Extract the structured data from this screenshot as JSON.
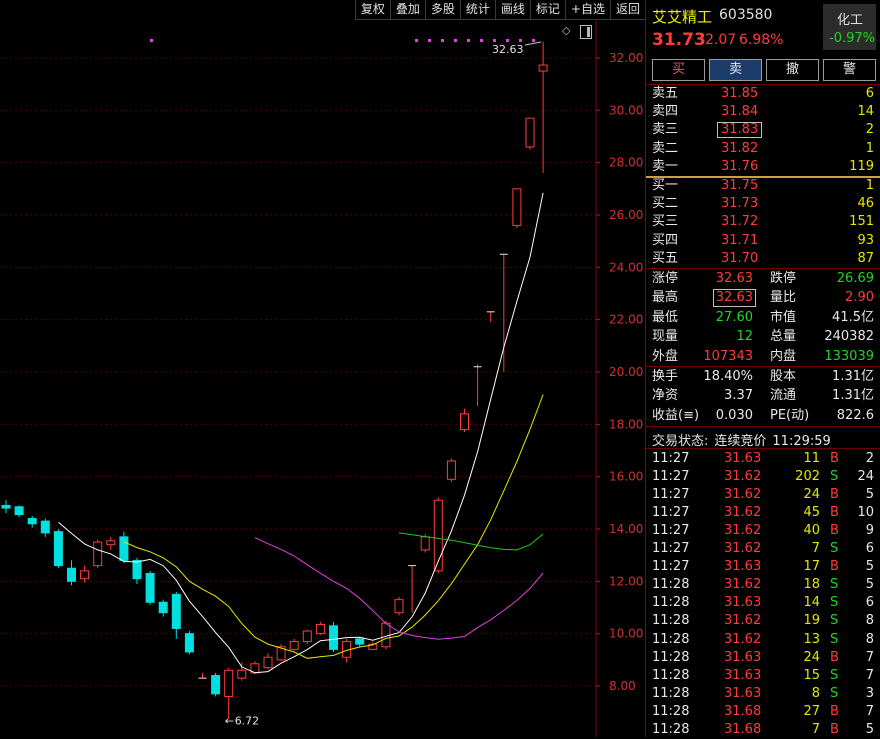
{
  "toolbar": {
    "buttons": [
      "复权",
      "叠加",
      "多股",
      "统计",
      "画线",
      "标记",
      "+自选",
      "返回"
    ]
  },
  "chart_data": {
    "type": "candlestick",
    "y_ticks": [
      "32.00",
      "30.00",
      "28.00",
      "26.00",
      "24.00",
      "22.00",
      "20.00",
      "18.00",
      "16.00",
      "14.00",
      "12.00",
      "10.00",
      "8.00"
    ],
    "ylim": [
      7.0,
      33.2
    ],
    "annotations": {
      "high_label": "32.63",
      "low_label": "6.72"
    },
    "candles": [
      {
        "o": 14.9,
        "c": 14.8,
        "h": 15.1,
        "l": 14.6
      },
      {
        "o": 14.85,
        "c": 14.55,
        "h": 14.9,
        "l": 14.45
      },
      {
        "o": 14.4,
        "c": 14.2,
        "h": 14.5,
        "l": 14.05
      },
      {
        "o": 14.3,
        "c": 13.85,
        "h": 14.4,
        "l": 13.7
      },
      {
        "o": 13.9,
        "c": 12.6,
        "h": 14.0,
        "l": 12.5
      },
      {
        "o": 12.5,
        "c": 12.0,
        "h": 12.8,
        "l": 11.85
      },
      {
        "o": 12.1,
        "c": 12.4,
        "h": 12.6,
        "l": 11.95
      },
      {
        "o": 12.6,
        "c": 13.5,
        "h": 13.6,
        "l": 12.5
      },
      {
        "o": 13.4,
        "c": 13.55,
        "h": 13.7,
        "l": 13.2
      },
      {
        "o": 13.7,
        "c": 12.8,
        "h": 13.9,
        "l": 12.7
      },
      {
        "o": 12.8,
        "c": 12.1,
        "h": 12.9,
        "l": 11.9
      },
      {
        "o": 12.3,
        "c": 11.2,
        "h": 12.4,
        "l": 11.1
      },
      {
        "o": 11.2,
        "c": 10.8,
        "h": 11.3,
        "l": 10.65
      },
      {
        "o": 11.5,
        "c": 10.2,
        "h": 11.6,
        "l": 9.8
      },
      {
        "o": 10.0,
        "c": 9.3,
        "h": 10.1,
        "l": 9.2
      },
      {
        "o": 8.3,
        "c": 8.3,
        "h": 8.5,
        "l": 8.3
      },
      {
        "o": 8.4,
        "c": 7.7,
        "h": 8.5,
        "l": 7.6
      },
      {
        "o": 7.6,
        "c": 8.6,
        "h": 8.7,
        "l": 6.72
      },
      {
        "o": 8.3,
        "c": 8.6,
        "h": 8.9,
        "l": 8.2
      },
      {
        "o": 8.5,
        "c": 8.85,
        "h": 8.95,
        "l": 8.45
      },
      {
        "o": 8.7,
        "c": 9.1,
        "h": 9.25,
        "l": 8.65
      },
      {
        "o": 9.0,
        "c": 9.5,
        "h": 9.6,
        "l": 8.95
      },
      {
        "o": 9.4,
        "c": 9.7,
        "h": 9.8,
        "l": 9.35
      },
      {
        "o": 9.7,
        "c": 10.1,
        "h": 10.15,
        "l": 9.6
      },
      {
        "o": 10.0,
        "c": 10.35,
        "h": 10.45,
        "l": 9.95
      },
      {
        "o": 10.3,
        "c": 9.4,
        "h": 10.45,
        "l": 9.3
      },
      {
        "o": 9.1,
        "c": 9.7,
        "h": 9.8,
        "l": 8.9
      },
      {
        "o": 9.8,
        "c": 9.6,
        "h": 9.85,
        "l": 9.5
      },
      {
        "o": 9.4,
        "c": 9.6,
        "h": 9.7,
        "l": 9.4
      },
      {
        "o": 9.5,
        "c": 10.4,
        "h": 10.5,
        "l": 9.4
      },
      {
        "o": 10.8,
        "c": 11.3,
        "h": 11.4,
        "l": 10.7
      },
      {
        "o": 12.6,
        "c": 12.6,
        "h": 12.6,
        "l": 10.8
      },
      {
        "o": 13.2,
        "c": 13.7,
        "h": 13.8,
        "l": 13.1
      },
      {
        "o": 12.4,
        "c": 15.1,
        "h": 15.2,
        "l": 12.3
      },
      {
        "o": 15.9,
        "c": 16.6,
        "h": 16.7,
        "l": 15.8
      },
      {
        "o": 17.8,
        "c": 18.4,
        "h": 18.6,
        "l": 17.7
      },
      {
        "o": 20.2,
        "c": 20.2,
        "h": 20.3,
        "l": 18.7
      },
      {
        "o": 22.3,
        "c": 22.3,
        "h": 22.3,
        "l": 21.9
      },
      {
        "o": 24.5,
        "c": 24.5,
        "h": 24.5,
        "l": 20.0
      },
      {
        "o": 25.6,
        "c": 27.0,
        "h": 27.0,
        "l": 25.5
      },
      {
        "o": 28.6,
        "c": 29.7,
        "h": 29.7,
        "l": 28.5
      },
      {
        "o": 31.5,
        "c": 31.73,
        "h": 32.63,
        "l": 27.6
      }
    ],
    "ma_series": [
      {
        "color": "#ffffff",
        "values": [
          null,
          null,
          null,
          null,
          14.26,
          13.83,
          13.43,
          13.2,
          13.05,
          12.76,
          12.74,
          12.84,
          12.6,
          12.04,
          11.24,
          10.66,
          10.04,
          9.48,
          8.73,
          8.51,
          8.55,
          8.87,
          9.12,
          9.39,
          9.73,
          9.78,
          9.85,
          9.86,
          9.75,
          9.9,
          10.04,
          10.64,
          11.55,
          12.77,
          13.92,
          15.29,
          16.95,
          18.96,
          20.94,
          22.7,
          24.39,
          26.85
        ]
      },
      {
        "color": "#e6e600",
        "values": [
          null,
          null,
          null,
          null,
          null,
          null,
          null,
          null,
          null,
          13.51,
          13.29,
          13.13,
          12.9,
          12.55,
          12.0,
          11.7,
          11.43,
          11.04,
          10.39,
          9.87,
          9.6,
          9.45,
          9.3,
          9.06,
          9.12,
          9.17,
          9.36,
          9.49,
          9.57,
          9.82,
          9.91,
          10.25,
          10.71,
          11.26,
          11.91,
          12.66,
          13.4,
          14.35,
          15.46,
          16.58,
          17.81,
          19.14
        ]
      },
      {
        "color": "#e040e0",
        "values": [
          null,
          null,
          null,
          null,
          null,
          null,
          null,
          null,
          null,
          null,
          null,
          null,
          null,
          null,
          null,
          null,
          null,
          null,
          null,
          13.67,
          13.44,
          13.22,
          12.97,
          12.63,
          12.31,
          12.0,
          11.73,
          11.35,
          10.88,
          10.39,
          10.07,
          9.93,
          9.85,
          9.79,
          9.83,
          9.89,
          10.23,
          10.53,
          10.89,
          11.27,
          11.73,
          12.32
        ]
      },
      {
        "color": "#21c821",
        "values": [
          null,
          null,
          null,
          null,
          null,
          null,
          null,
          null,
          null,
          null,
          null,
          null,
          null,
          null,
          null,
          null,
          null,
          null,
          null,
          null,
          null,
          null,
          null,
          null,
          null,
          null,
          null,
          null,
          null,
          null,
          13.85,
          13.78,
          13.71,
          13.64,
          13.57,
          13.48,
          13.38,
          13.28,
          13.22,
          13.2,
          13.4,
          13.81
        ]
      }
    ]
  },
  "quote": {
    "name": "艾艾精工",
    "code": "603580",
    "sector": "化工",
    "sector_change": "-0.97%",
    "price": "31.73",
    "change": "2.07",
    "change_pct": "6.98%"
  },
  "actions": [
    "买",
    "卖",
    "撤",
    "警"
  ],
  "asks": [
    {
      "label": "卖五",
      "price": "31.85",
      "vol": "6"
    },
    {
      "label": "卖四",
      "price": "31.84",
      "vol": "14"
    },
    {
      "label": "卖三",
      "price": "31.83",
      "vol": "2"
    },
    {
      "label": "卖二",
      "price": "31.82",
      "vol": "1"
    },
    {
      "label": "卖一",
      "price": "31.76",
      "vol": "119"
    }
  ],
  "bids": [
    {
      "label": "买一",
      "price": "31.75",
      "vol": "1"
    },
    {
      "label": "买二",
      "price": "31.73",
      "vol": "46"
    },
    {
      "label": "买三",
      "price": "31.72",
      "vol": "151"
    },
    {
      "label": "买四",
      "price": "31.71",
      "vol": "93"
    },
    {
      "label": "买五",
      "price": "31.70",
      "vol": "87"
    }
  ],
  "stats1": [
    {
      "l1": "涨停",
      "v1": "32.63",
      "l2": "跌停",
      "v2": "26.69"
    },
    {
      "l1": "最高",
      "v1": "32.63",
      "l2": "量比",
      "v2": "2.90"
    },
    {
      "l1": "最低",
      "v1": "27.60",
      "l2": "市值",
      "v2": "41.5亿"
    },
    {
      "l1": "现量",
      "v1": "12",
      "l2": "总量",
      "v2": "240382"
    },
    {
      "l1": "外盘",
      "v1": "107343",
      "l2": "内盘",
      "v2": "133039"
    }
  ],
  "stats2": [
    {
      "l1": "换手",
      "v1": "18.40%",
      "l2": "股本",
      "v2": "1.31亿"
    },
    {
      "l1": "净资",
      "v1": "3.37",
      "l2": "流通",
      "v2": "1.31亿"
    },
    {
      "l1": "收益(≡)",
      "v1": "0.030",
      "l2": "PE(动)",
      "v2": "822.6"
    }
  ],
  "trade_status": {
    "label": "交易状态:",
    "state": "连续竞价",
    "time": "11:29:59"
  },
  "ticks": [
    {
      "t": "11:27",
      "p": "31.63",
      "v": "11",
      "s": "B",
      "n": "2"
    },
    {
      "t": "11:27",
      "p": "31.62",
      "v": "202",
      "s": "S",
      "n": "24"
    },
    {
      "t": "11:27",
      "p": "31.62",
      "v": "24",
      "s": "B",
      "n": "5"
    },
    {
      "t": "11:27",
      "p": "31.62",
      "v": "45",
      "s": "B",
      "n": "10"
    },
    {
      "t": "11:27",
      "p": "31.62",
      "v": "40",
      "s": "B",
      "n": "9"
    },
    {
      "t": "11:27",
      "p": "31.62",
      "v": "7",
      "s": "S",
      "n": "6"
    },
    {
      "t": "11:27",
      "p": "31.63",
      "v": "17",
      "s": "B",
      "n": "5"
    },
    {
      "t": "11:28",
      "p": "31.62",
      "v": "18",
      "s": "S",
      "n": "5"
    },
    {
      "t": "11:28",
      "p": "31.63",
      "v": "14",
      "s": "S",
      "n": "6"
    },
    {
      "t": "11:28",
      "p": "31.62",
      "v": "19",
      "s": "S",
      "n": "8"
    },
    {
      "t": "11:28",
      "p": "31.62",
      "v": "13",
      "s": "S",
      "n": "8"
    },
    {
      "t": "11:28",
      "p": "31.63",
      "v": "24",
      "s": "B",
      "n": "7"
    },
    {
      "t": "11:28",
      "p": "31.63",
      "v": "15",
      "s": "S",
      "n": "7"
    },
    {
      "t": "11:28",
      "p": "31.63",
      "v": "8",
      "s": "S",
      "n": "3"
    },
    {
      "t": "11:28",
      "p": "31.68",
      "v": "27",
      "s": "B",
      "n": "7"
    },
    {
      "t": "11:28",
      "p": "31.68",
      "v": "7",
      "s": "B",
      "n": "5"
    }
  ],
  "colors": {
    "up": "#ff3b3b",
    "down": "#00e0e0",
    "grid": "#5a0000",
    "axis_text": "#d03030",
    "bg": "#000000"
  }
}
